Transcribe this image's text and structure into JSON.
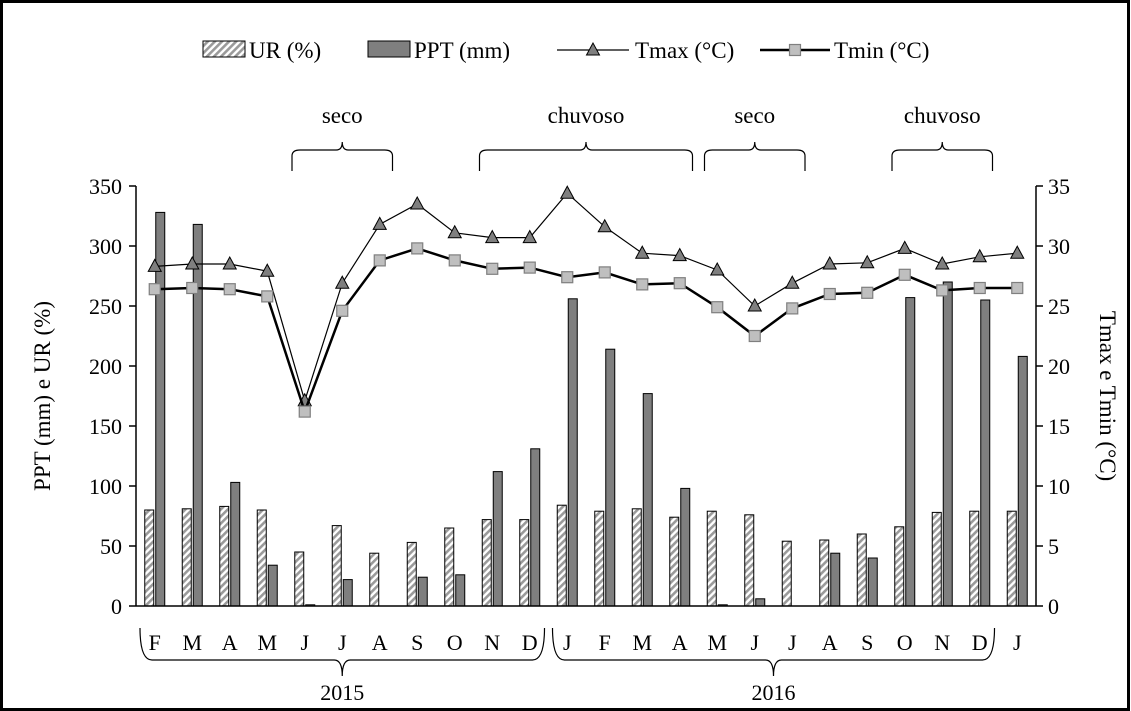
{
  "chart_data": {
    "type": "bar",
    "categories": [
      "F",
      "M",
      "A",
      "M",
      "J",
      "J",
      "A",
      "S",
      "O",
      "N",
      "D",
      "J",
      "F",
      "M",
      "A",
      "M",
      "J",
      "J",
      "A",
      "S",
      "O",
      "N",
      "D",
      "J"
    ],
    "years": [
      {
        "label": "2015",
        "first": 0,
        "last": 10
      },
      {
        "label": "2016",
        "first": 11,
        "last": 22
      }
    ],
    "periods": [
      {
        "label": "seco",
        "first": 4,
        "last": 6
      },
      {
        "label": "chuvoso",
        "first": 9,
        "last": 14
      },
      {
        "label": "seco",
        "first": 15,
        "last": 17
      },
      {
        "label": "chuvoso",
        "first": 20,
        "last": 22
      }
    ],
    "series": [
      {
        "name": "UR (%)",
        "kind": "bar",
        "axis": "left",
        "pattern": "hatch",
        "values": [
          80,
          81,
          83,
          80,
          45,
          67,
          44,
          53,
          65,
          72,
          72,
          84,
          79,
          81,
          74,
          79,
          76,
          54,
          55,
          60,
          66,
          78,
          79,
          79
        ]
      },
      {
        "name": "PPT (mm)",
        "kind": "bar",
        "axis": "left",
        "color": "#7f7f7f",
        "values": [
          328,
          318,
          103,
          34,
          1,
          22,
          0,
          24,
          26,
          112,
          131,
          256,
          214,
          177,
          98,
          1,
          6,
          0,
          44,
          40,
          257,
          270,
          255,
          208
        ]
      },
      {
        "name": "Tmax (°C)",
        "kind": "line",
        "axis": "right",
        "marker": "triangle",
        "values": [
          28.3,
          28.5,
          28.5,
          27.9,
          17.1,
          26.9,
          31.8,
          33.5,
          31.1,
          30.7,
          30.7,
          34.4,
          31.6,
          29.4,
          29.2,
          28.0,
          25.0,
          26.9,
          28.5,
          28.6,
          29.8,
          28.5,
          29.1,
          29.4
        ]
      },
      {
        "name": "Tmin (°C)",
        "kind": "line",
        "axis": "right",
        "marker": "square",
        "values": [
          26.4,
          26.5,
          26.4,
          25.8,
          16.2,
          24.6,
          28.8,
          29.8,
          28.8,
          28.1,
          28.2,
          27.4,
          27.8,
          26.8,
          26.9,
          24.9,
          22.5,
          24.8,
          26.0,
          26.1,
          27.6,
          26.3,
          26.5,
          26.5
        ]
      }
    ],
    "ylabel_left": "PPT (mm) e UR (%)",
    "ylabel_right": "Tmax e Tmin (°C)",
    "ylim_left": [
      0,
      350
    ],
    "ylim_right": [
      0,
      35
    ],
    "yticks_left": [
      "0",
      "50",
      "100",
      "150",
      "200",
      "250",
      "300",
      "350"
    ],
    "yticks_right": [
      "0",
      "5",
      "10",
      "15",
      "20",
      "25",
      "30",
      "35"
    ],
    "legend_position": "top",
    "grid": false
  }
}
